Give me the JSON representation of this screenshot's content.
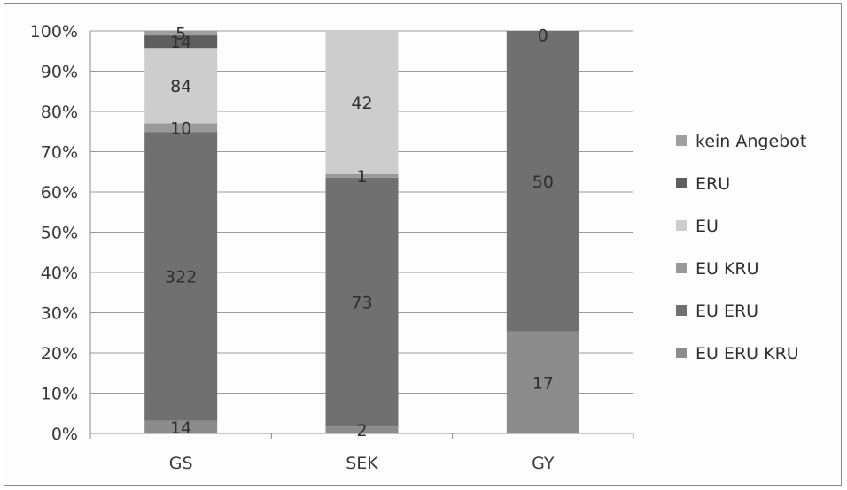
{
  "chart_data": {
    "type": "stacked-bar-100",
    "categories": [
      "GS",
      "SEK",
      "GY"
    ],
    "series": [
      {
        "name": "EU ERU KRU",
        "color": "#8c8c8c",
        "values": [
          14,
          2,
          17
        ]
      },
      {
        "name": "EU ERU",
        "color": "#707070",
        "values": [
          322,
          73,
          50
        ]
      },
      {
        "name": "EU KRU",
        "color": "#999999",
        "values": [
          10,
          1,
          0
        ]
      },
      {
        "name": "EU",
        "color": "#cdcdcd",
        "values": [
          84,
          42,
          0
        ]
      },
      {
        "name": "ERU",
        "color": "#5e5e5e",
        "values": [
          14,
          0,
          0
        ]
      },
      {
        "name": "kein Angebot",
        "color": "#9f9f9f",
        "values": [
          5,
          0,
          0
        ]
      }
    ],
    "data_labels": [
      {
        "category": "GS",
        "series": "EU ERU KRU",
        "text": "14"
      },
      {
        "category": "GS",
        "series": "EU ERU",
        "text": "322"
      },
      {
        "category": "GS",
        "series": "EU KRU",
        "text": "10"
      },
      {
        "category": "GS",
        "series": "EU",
        "text": "84"
      },
      {
        "category": "GS",
        "series": "ERU",
        "text": "14"
      },
      {
        "category": "GS",
        "series": "kein Angebot",
        "text": "5"
      },
      {
        "category": "SEK",
        "series": "EU ERU KRU",
        "text": "2"
      },
      {
        "category": "SEK",
        "series": "EU ERU",
        "text": "73"
      },
      {
        "category": "SEK",
        "series": "EU KRU",
        "text": "1"
      },
      {
        "category": "SEK",
        "series": "EU",
        "text": "42"
      },
      {
        "category": "GY",
        "series": "EU ERU KRU",
        "text": "17"
      },
      {
        "category": "GY",
        "series": "EU ERU",
        "text": "50"
      },
      {
        "category": "GY",
        "series": "EU KRU",
        "text": "0"
      }
    ],
    "yticks": [
      "0%",
      "10%",
      "20%",
      "30%",
      "40%",
      "50%",
      "60%",
      "70%",
      "80%",
      "90%",
      "100%"
    ],
    "ylim": [
      0,
      100
    ],
    "legend_order": [
      "kein Angebot",
      "ERU",
      "EU",
      "EU KRU",
      "EU ERU",
      "EU ERU KRU"
    ],
    "legend_position": "right",
    "grid": true,
    "title": "",
    "xlabel": "",
    "ylabel": ""
  }
}
